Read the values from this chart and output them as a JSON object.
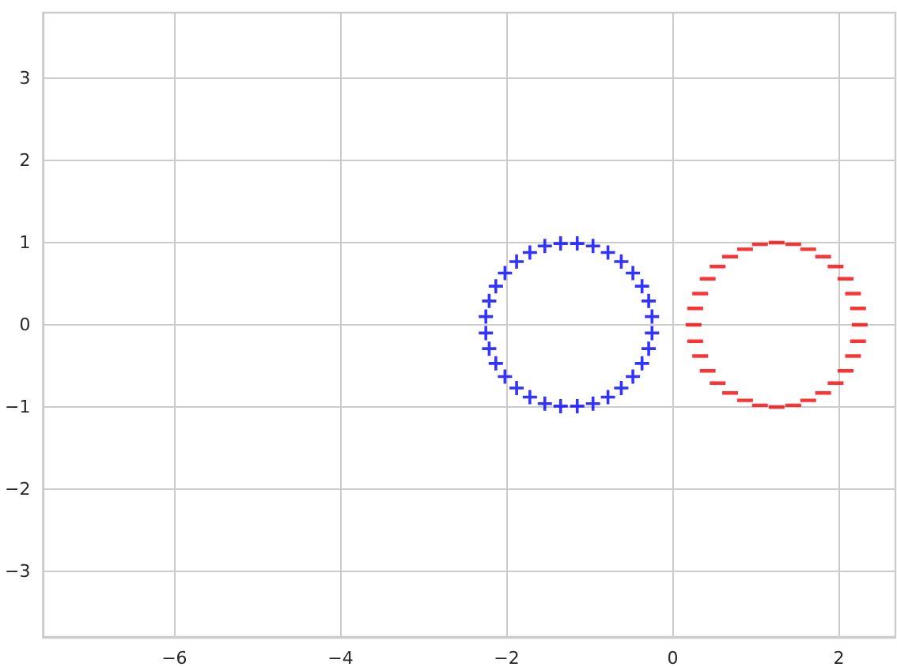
{
  "chart_data": {
    "type": "scatter",
    "xlim": [
      -7.58,
      2.68
    ],
    "ylim": [
      -3.8,
      3.8
    ],
    "xticks": [
      -6,
      -4,
      -2,
      0,
      2
    ],
    "yticks": [
      -3,
      -2,
      -1,
      0,
      1,
      2,
      3
    ],
    "grid": true,
    "series": [
      {
        "color": "#0000ff",
        "marker": "cross",
        "x": [
          -0.25,
          -0.29,
          -0.37,
          -0.48,
          -0.62,
          -0.78,
          -0.96,
          -1.15,
          -1.35,
          -1.54,
          -1.72,
          -1.88,
          -2.02,
          -2.13,
          -2.21,
          -2.25,
          -2.25,
          -2.21,
          -2.13,
          -2.02,
          -1.88,
          -1.72,
          -1.54,
          -1.35,
          -1.15,
          -0.96,
          -0.78,
          -0.62,
          -0.48,
          -0.37,
          -0.29,
          -0.25
        ],
        "values": [
          0.1,
          0.29,
          0.47,
          0.63,
          0.77,
          0.88,
          0.96,
          0.99,
          0.99,
          0.96,
          0.88,
          0.77,
          0.63,
          0.47,
          0.29,
          0.1,
          -0.1,
          -0.29,
          -0.47,
          -0.63,
          -0.77,
          -0.88,
          -0.96,
          -0.99,
          -0.99,
          -0.96,
          -0.88,
          -0.77,
          -0.63,
          -0.47,
          -0.29,
          -0.1
        ]
      },
      {
        "color": "#ff0000",
        "x": [
          2.25,
          2.23,
          2.17,
          2.08,
          1.96,
          1.81,
          1.63,
          1.45,
          1.25,
          1.05,
          0.87,
          0.69,
          0.54,
          0.42,
          0.33,
          0.27,
          0.25,
          0.27,
          0.33,
          0.42,
          0.54,
          0.69,
          0.87,
          1.05,
          1.25,
          1.45,
          1.63,
          1.81,
          1.96,
          2.08,
          2.17,
          2.23
        ],
        "values": [
          0,
          0.2,
          0.38,
          0.56,
          0.71,
          0.83,
          0.92,
          0.98,
          1,
          0.98,
          0.92,
          0.83,
          0.71,
          0.56,
          0.38,
          0.2,
          0,
          -0.2,
          -0.38,
          -0.56,
          -0.71,
          -0.83,
          -0.92,
          -0.98,
          -1,
          -0.98,
          -0.92,
          -0.83,
          -0.71,
          -0.56,
          -0.38,
          -0.2
        ]
      }
    ]
  }
}
